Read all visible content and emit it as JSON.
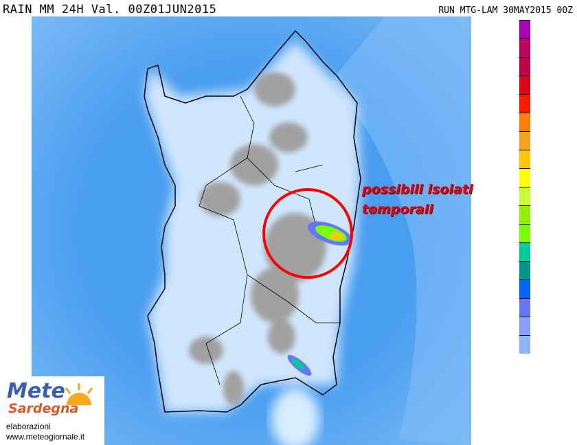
{
  "header": {
    "title_left": "RAIN  MM 24H  Val. 00Z01JUN2015",
    "title_right": "RUN MTG-LAM 30MAY2015 00Z"
  },
  "annotation": {
    "line1": "possibili isolati",
    "line2": "temporali"
  },
  "colorbar": {
    "colors": [
      "#a800b8",
      "#c0005e",
      "#c20046",
      "#e00018",
      "#ff1a00",
      "#ff7d00",
      "#f8a020",
      "#ffc800",
      "#ffff00",
      "#c8ff30",
      "#90f000",
      "#78ff00",
      "#00cc96",
      "#00968c",
      "#0064ff",
      "#6478ff",
      "#8c9cff",
      "#8cb4ff"
    ]
  },
  "logo": {
    "brand_top": "Mete",
    "brand_bottom": "Sardegna",
    "line1": "elaborazioni",
    "line2": "www.meteogiornale.it"
  },
  "map": {
    "sea_color": "#4a9ef0",
    "outer_sea_color": "#7ab8f5",
    "terrain_color": "#a8a8a8",
    "highlight_circle_color": "#ff0000"
  }
}
